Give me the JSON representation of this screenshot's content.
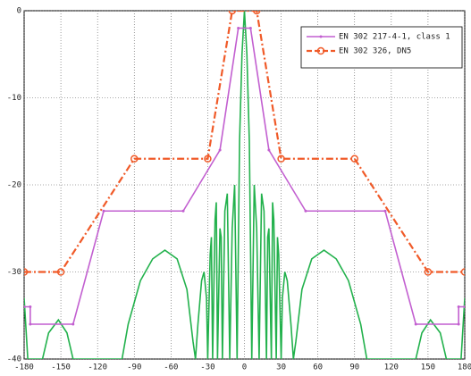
{
  "chart_data": {
    "type": "line",
    "xlim": [
      -180,
      180
    ],
    "ylim": [
      -40,
      0
    ],
    "xticks": [
      -180,
      -150,
      -120,
      -90,
      -60,
      -30,
      0,
      30,
      60,
      90,
      120,
      150,
      180
    ],
    "yticks": [
      0,
      -10,
      -20,
      -30,
      -40
    ],
    "grid": true,
    "legend": "upper right",
    "series": [
      {
        "name": "EN 302 217-4-1, class 1",
        "color": "#c25fd0",
        "marker": "dot",
        "x": [
          -180,
          -175,
          -175,
          -140,
          -115,
          -50,
          -20,
          -5,
          5,
          20,
          50,
          115,
          140,
          175,
          175,
          180
        ],
        "values": [
          -34,
          -34,
          -36,
          -36,
          -23,
          -23,
          -16,
          -2,
          -2,
          -16,
          -23,
          -23,
          -36,
          -36,
          -34,
          -34
        ]
      },
      {
        "name": "EN 302 326, DN5",
        "color": "#f05a28",
        "marker": "circle",
        "x": [
          -180,
          -150,
          -90,
          -30,
          -10,
          10,
          30,
          90,
          150,
          180
        ],
        "values": [
          -30,
          -30,
          -17,
          -17,
          0,
          0,
          -17,
          -17,
          -30,
          -30
        ]
      },
      {
        "color": "#22b14c",
        "x": [
          -180,
          -177,
          -165,
          -160,
          -152,
          -145,
          -140,
          -100,
          -95,
          -85,
          -75,
          -65,
          -55,
          -47,
          -42,
          -40,
          -38,
          -35,
          -33,
          -31,
          -30,
          -28,
          -27,
          -26,
          -24,
          -23,
          -22,
          -20,
          -19,
          -18,
          -16,
          -14,
          -12,
          -10,
          -8,
          -6,
          -4,
          -2,
          0,
          2,
          4,
          6,
          8,
          10,
          12,
          14,
          16,
          18,
          19,
          20,
          22,
          23,
          24,
          26,
          27,
          28,
          30,
          31,
          33,
          35,
          38,
          40,
          42,
          47,
          55,
          65,
          75,
          85,
          95,
          100,
          140,
          145,
          152,
          160,
          165,
          177,
          180
        ],
        "values": [
          -33,
          -40,
          -40,
          -37,
          -35.5,
          -37,
          -40,
          -40,
          -36,
          -31,
          -28.5,
          -27.5,
          -28.5,
          -32,
          -38,
          -40,
          -36,
          -31,
          -30,
          -33,
          -40,
          -28,
          -26,
          -40,
          -24,
          -22,
          -40,
          -25,
          -26,
          -40,
          -23,
          -21,
          -40,
          -25,
          -20,
          -40,
          -15,
          -5,
          0,
          -5,
          -15,
          -40,
          -20,
          -25,
          -40,
          -21,
          -23,
          -40,
          -26,
          -25,
          -40,
          -22,
          -24,
          -40,
          -26,
          -28,
          -40,
          -33,
          -30,
          -31,
          -36,
          -40,
          -38,
          -32,
          -28.5,
          -27.5,
          -28.5,
          -31,
          -36,
          -40,
          -40,
          -37,
          -35.5,
          -37,
          -40,
          -40,
          -33
        ]
      }
    ]
  }
}
